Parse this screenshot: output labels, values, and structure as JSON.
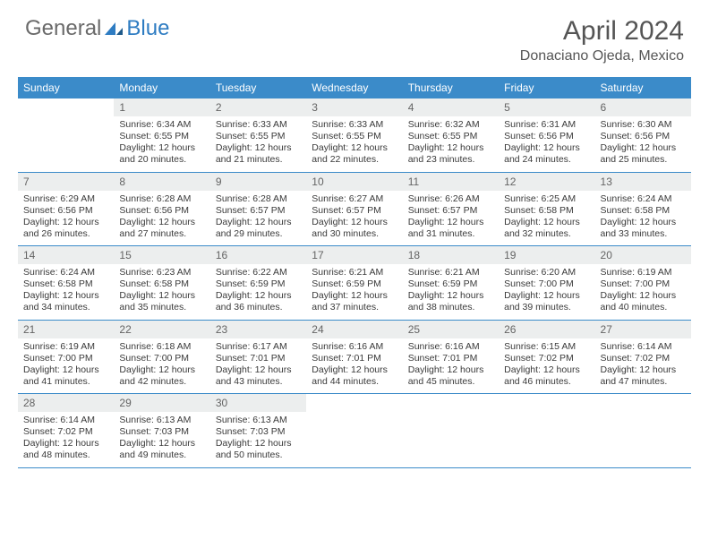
{
  "logo": {
    "general": "General",
    "blue": "Blue"
  },
  "title": "April 2024",
  "location": "Donaciano Ojeda, Mexico",
  "colors": {
    "header_bg": "#3b8bc9",
    "header_text": "#ffffff",
    "daynum_bg": "#eceeee",
    "daynum_text": "#646464",
    "body_text": "#3a3a3a",
    "rule": "#3b8bc9",
    "logo_gray": "#6a6a6a",
    "logo_blue": "#2e7cc2"
  },
  "dow": [
    "Sunday",
    "Monday",
    "Tuesday",
    "Wednesday",
    "Thursday",
    "Friday",
    "Saturday"
  ],
  "weeks": [
    [
      {
        "n": "",
        "sr": "",
        "ss": "",
        "dl": ""
      },
      {
        "n": "1",
        "sr": "Sunrise: 6:34 AM",
        "ss": "Sunset: 6:55 PM",
        "dl": "Daylight: 12 hours and 20 minutes."
      },
      {
        "n": "2",
        "sr": "Sunrise: 6:33 AM",
        "ss": "Sunset: 6:55 PM",
        "dl": "Daylight: 12 hours and 21 minutes."
      },
      {
        "n": "3",
        "sr": "Sunrise: 6:33 AM",
        "ss": "Sunset: 6:55 PM",
        "dl": "Daylight: 12 hours and 22 minutes."
      },
      {
        "n": "4",
        "sr": "Sunrise: 6:32 AM",
        "ss": "Sunset: 6:55 PM",
        "dl": "Daylight: 12 hours and 23 minutes."
      },
      {
        "n": "5",
        "sr": "Sunrise: 6:31 AM",
        "ss": "Sunset: 6:56 PM",
        "dl": "Daylight: 12 hours and 24 minutes."
      },
      {
        "n": "6",
        "sr": "Sunrise: 6:30 AM",
        "ss": "Sunset: 6:56 PM",
        "dl": "Daylight: 12 hours and 25 minutes."
      }
    ],
    [
      {
        "n": "7",
        "sr": "Sunrise: 6:29 AM",
        "ss": "Sunset: 6:56 PM",
        "dl": "Daylight: 12 hours and 26 minutes."
      },
      {
        "n": "8",
        "sr": "Sunrise: 6:28 AM",
        "ss": "Sunset: 6:56 PM",
        "dl": "Daylight: 12 hours and 27 minutes."
      },
      {
        "n": "9",
        "sr": "Sunrise: 6:28 AM",
        "ss": "Sunset: 6:57 PM",
        "dl": "Daylight: 12 hours and 29 minutes."
      },
      {
        "n": "10",
        "sr": "Sunrise: 6:27 AM",
        "ss": "Sunset: 6:57 PM",
        "dl": "Daylight: 12 hours and 30 minutes."
      },
      {
        "n": "11",
        "sr": "Sunrise: 6:26 AM",
        "ss": "Sunset: 6:57 PM",
        "dl": "Daylight: 12 hours and 31 minutes."
      },
      {
        "n": "12",
        "sr": "Sunrise: 6:25 AM",
        "ss": "Sunset: 6:58 PM",
        "dl": "Daylight: 12 hours and 32 minutes."
      },
      {
        "n": "13",
        "sr": "Sunrise: 6:24 AM",
        "ss": "Sunset: 6:58 PM",
        "dl": "Daylight: 12 hours and 33 minutes."
      }
    ],
    [
      {
        "n": "14",
        "sr": "Sunrise: 6:24 AM",
        "ss": "Sunset: 6:58 PM",
        "dl": "Daylight: 12 hours and 34 minutes."
      },
      {
        "n": "15",
        "sr": "Sunrise: 6:23 AM",
        "ss": "Sunset: 6:58 PM",
        "dl": "Daylight: 12 hours and 35 minutes."
      },
      {
        "n": "16",
        "sr": "Sunrise: 6:22 AM",
        "ss": "Sunset: 6:59 PM",
        "dl": "Daylight: 12 hours and 36 minutes."
      },
      {
        "n": "17",
        "sr": "Sunrise: 6:21 AM",
        "ss": "Sunset: 6:59 PM",
        "dl": "Daylight: 12 hours and 37 minutes."
      },
      {
        "n": "18",
        "sr": "Sunrise: 6:21 AM",
        "ss": "Sunset: 6:59 PM",
        "dl": "Daylight: 12 hours and 38 minutes."
      },
      {
        "n": "19",
        "sr": "Sunrise: 6:20 AM",
        "ss": "Sunset: 7:00 PM",
        "dl": "Daylight: 12 hours and 39 minutes."
      },
      {
        "n": "20",
        "sr": "Sunrise: 6:19 AM",
        "ss": "Sunset: 7:00 PM",
        "dl": "Daylight: 12 hours and 40 minutes."
      }
    ],
    [
      {
        "n": "21",
        "sr": "Sunrise: 6:19 AM",
        "ss": "Sunset: 7:00 PM",
        "dl": "Daylight: 12 hours and 41 minutes."
      },
      {
        "n": "22",
        "sr": "Sunrise: 6:18 AM",
        "ss": "Sunset: 7:00 PM",
        "dl": "Daylight: 12 hours and 42 minutes."
      },
      {
        "n": "23",
        "sr": "Sunrise: 6:17 AM",
        "ss": "Sunset: 7:01 PM",
        "dl": "Daylight: 12 hours and 43 minutes."
      },
      {
        "n": "24",
        "sr": "Sunrise: 6:16 AM",
        "ss": "Sunset: 7:01 PM",
        "dl": "Daylight: 12 hours and 44 minutes."
      },
      {
        "n": "25",
        "sr": "Sunrise: 6:16 AM",
        "ss": "Sunset: 7:01 PM",
        "dl": "Daylight: 12 hours and 45 minutes."
      },
      {
        "n": "26",
        "sr": "Sunrise: 6:15 AM",
        "ss": "Sunset: 7:02 PM",
        "dl": "Daylight: 12 hours and 46 minutes."
      },
      {
        "n": "27",
        "sr": "Sunrise: 6:14 AM",
        "ss": "Sunset: 7:02 PM",
        "dl": "Daylight: 12 hours and 47 minutes."
      }
    ],
    [
      {
        "n": "28",
        "sr": "Sunrise: 6:14 AM",
        "ss": "Sunset: 7:02 PM",
        "dl": "Daylight: 12 hours and 48 minutes."
      },
      {
        "n": "29",
        "sr": "Sunrise: 6:13 AM",
        "ss": "Sunset: 7:03 PM",
        "dl": "Daylight: 12 hours and 49 minutes."
      },
      {
        "n": "30",
        "sr": "Sunrise: 6:13 AM",
        "ss": "Sunset: 7:03 PM",
        "dl": "Daylight: 12 hours and 50 minutes."
      },
      {
        "n": "",
        "sr": "",
        "ss": "",
        "dl": ""
      },
      {
        "n": "",
        "sr": "",
        "ss": "",
        "dl": ""
      },
      {
        "n": "",
        "sr": "",
        "ss": "",
        "dl": ""
      },
      {
        "n": "",
        "sr": "",
        "ss": "",
        "dl": ""
      }
    ]
  ]
}
